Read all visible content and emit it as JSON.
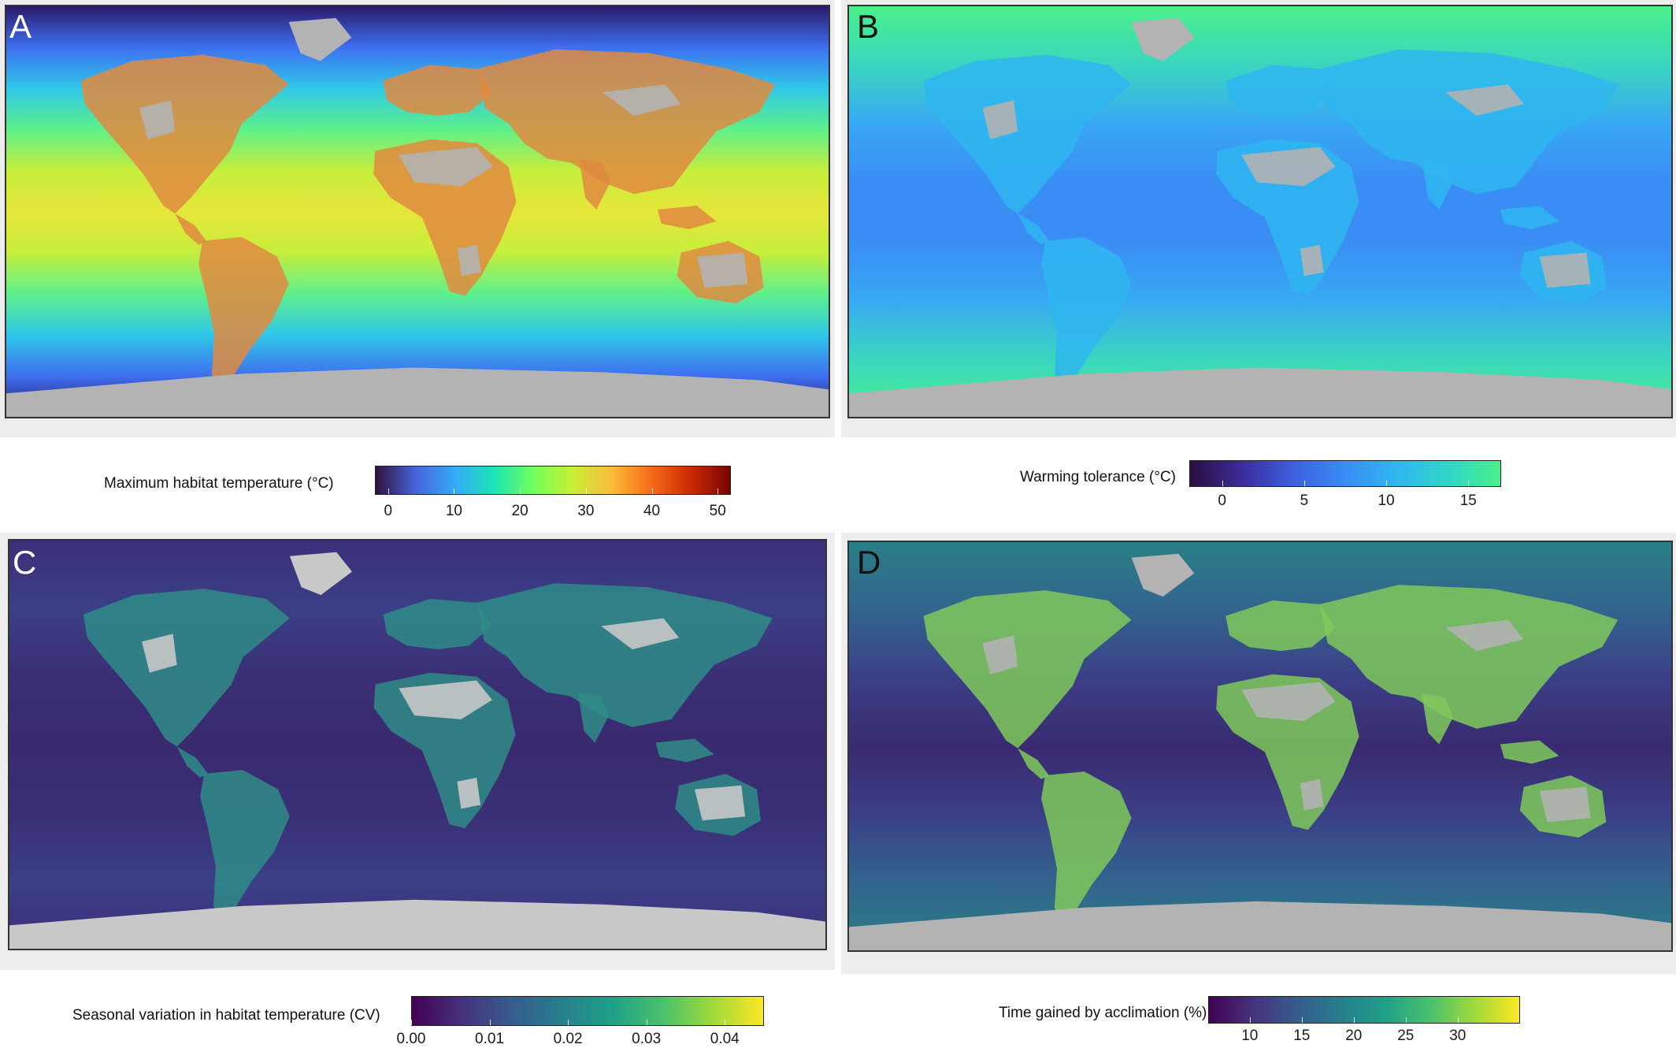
{
  "panels": [
    {
      "id": "A",
      "letter": "A",
      "letter_color": "#ffffff",
      "legend_title": "Maximum habitat temperature (°C)",
      "colorscale": "turbo",
      "gradient": [
        "#30123b",
        "#4662d7",
        "#36aaf9",
        "#1ae4b6",
        "#72fe5e",
        "#c8ef34",
        "#fabb39",
        "#f66b19",
        "#ca2a04",
        "#7a0403"
      ],
      "range": [
        -2,
        52
      ],
      "ticks": [
        {
          "value": 0,
          "label": "0"
        },
        {
          "value": 10,
          "label": "10"
        },
        {
          "value": 20,
          "label": "20"
        },
        {
          "value": 30,
          "label": "30"
        },
        {
          "value": 40,
          "label": "40"
        },
        {
          "value": 50,
          "label": "50"
        }
      ],
      "ocean_gradient": [
        "#2b1a6b",
        "#3e6ff0",
        "#2fc8e8",
        "#5ef08a",
        "#c6ee3c",
        "#e6e63a",
        "#c6ee3c",
        "#5ef08a",
        "#2fc8e8",
        "#3e6ff0",
        "#2b1a6b"
      ],
      "land_color": "#e08a40",
      "nodata_color": "#b3b3b3"
    },
    {
      "id": "B",
      "letter": "B",
      "letter_color": "#111111",
      "legend_title": "Warming tolerance (°C)",
      "colorscale": "blue-green",
      "gradient": [
        "#2a0e3e",
        "#3b2d9a",
        "#3d5fe0",
        "#3a8df5",
        "#2fb6f0",
        "#2fd6c8",
        "#4bf08a"
      ],
      "range": [
        -2,
        17
      ],
      "ticks": [
        {
          "value": 0,
          "label": "0"
        },
        {
          "value": 5,
          "label": "5"
        },
        {
          "value": 10,
          "label": "10"
        },
        {
          "value": 15,
          "label": "15"
        }
      ],
      "ocean_gradient": [
        "#4bf08a",
        "#3ad6c0",
        "#38a8f3",
        "#3a8df5",
        "#3a8df5",
        "#38a8f3",
        "#3ad6c0",
        "#4bf08a"
      ],
      "land_color": "#2fb6f0",
      "nodata_color": "#b3b3b3"
    },
    {
      "id": "C",
      "letter": "C",
      "letter_color": "#ffffff",
      "legend_title": "Seasonal variation in habitat temperature (CV)",
      "colorscale": "viridis",
      "gradient": [
        "#440154",
        "#46327e",
        "#365c8d",
        "#277f8e",
        "#1fa187",
        "#4ac16d",
        "#a0da39",
        "#fde725"
      ],
      "range": [
        0.0,
        0.045
      ],
      "ticks": [
        {
          "value": 0.0,
          "label": "0.00"
        },
        {
          "value": 0.01,
          "label": "0.01"
        },
        {
          "value": 0.02,
          "label": "0.02"
        },
        {
          "value": 0.03,
          "label": "0.03"
        },
        {
          "value": 0.04,
          "label": "0.04"
        }
      ],
      "ocean_gradient": [
        "#3b2f7a",
        "#3b3f86",
        "#3a2f76",
        "#3a2a70",
        "#3a2f76",
        "#3b3f86",
        "#3b2f7a"
      ],
      "land_color": "#2f8c87",
      "nodata_color": "#c8c8c8"
    },
    {
      "id": "D",
      "letter": "D",
      "letter_color": "#111111",
      "legend_title": "Time gained by acclimation (%)",
      "colorscale": "viridis",
      "gradient": [
        "#440154",
        "#46327e",
        "#365c8d",
        "#277f8e",
        "#1fa187",
        "#4ac16d",
        "#a0da39",
        "#fde725"
      ],
      "range": [
        6,
        36
      ],
      "ticks": [
        {
          "value": 10,
          "label": "10"
        },
        {
          "value": 15,
          "label": "15"
        },
        {
          "value": 20,
          "label": "20"
        },
        {
          "value": 25,
          "label": "25"
        },
        {
          "value": 30,
          "label": "30"
        }
      ],
      "ocean_gradient": [
        "#2a7f86",
        "#32648e",
        "#3b3f86",
        "#3a2a70",
        "#3b3f86",
        "#32648e",
        "#2a7f86"
      ],
      "land_color": "#7fc95a",
      "nodata_color": "#b3b3b3"
    }
  ]
}
